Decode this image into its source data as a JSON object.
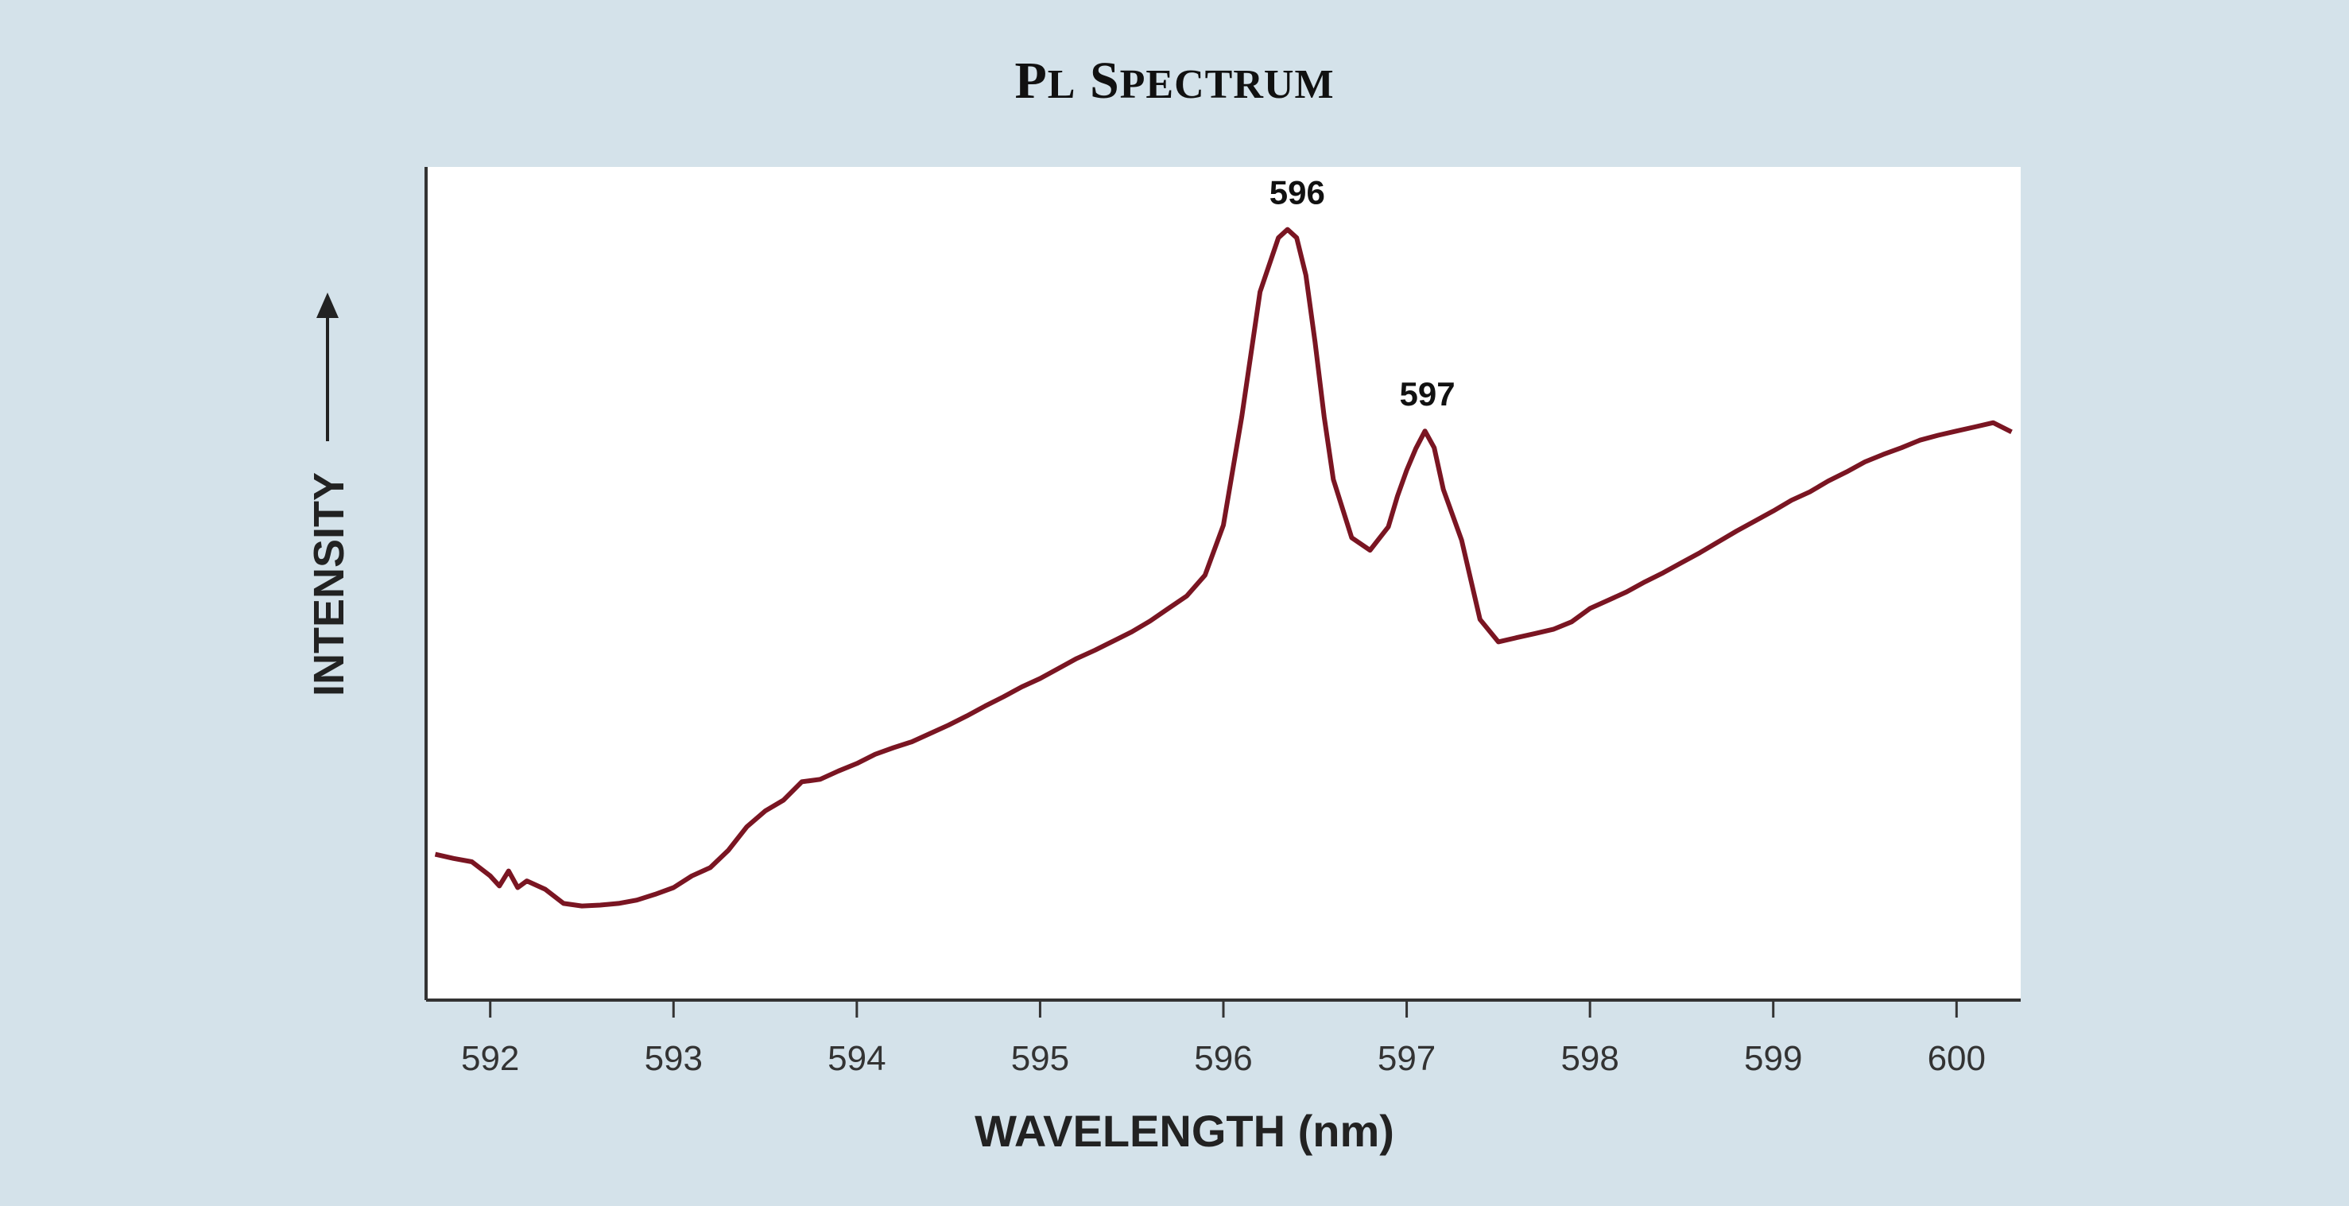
{
  "chart_data": {
    "type": "line",
    "title": "PL SPECTRUM",
    "xlabel": "WAVELENGTH (nm)",
    "ylabel": "INTENSITY",
    "xlim": [
      591.65,
      600.35
    ],
    "ylim": [
      0,
      100
    ],
    "x_ticks": [
      592,
      593,
      594,
      595,
      596,
      597,
      598,
      599,
      600
    ],
    "y_ticks_labeled": false,
    "grid": false,
    "legend": "none",
    "line_color": "#7a1522",
    "background_color": "#d4e2ea",
    "plot_background": "#ffffff",
    "annotations": [
      {
        "text": "596",
        "x": 596.42,
        "y": 92.5
      },
      {
        "text": "597",
        "x": 597.13,
        "y": 68.3
      }
    ],
    "series": [
      {
        "x": [
          591.7,
          591.8,
          591.9,
          592.0,
          592.05,
          592.1,
          592.15,
          592.2,
          592.3,
          592.4,
          592.5,
          592.6,
          592.7,
          592.8,
          592.9,
          593.0,
          593.1,
          593.2,
          593.3,
          593.4,
          593.5,
          593.6,
          593.7,
          593.8,
          593.9,
          594.0,
          594.1,
          594.2,
          594.3,
          594.4,
          594.5,
          594.6,
          594.7,
          594.8,
          594.9,
          595.0,
          595.1,
          595.2,
          595.3,
          595.4,
          595.5,
          595.6,
          595.7,
          595.8,
          595.9,
          596.0,
          596.1,
          596.2,
          596.3,
          596.35,
          596.4,
          596.45,
          596.5,
          596.55,
          596.6,
          596.7,
          596.8,
          596.9,
          596.95,
          597.0,
          597.05,
          597.1,
          597.15,
          597.2,
          597.3,
          597.4,
          597.5,
          597.6,
          597.7,
          597.8,
          597.9,
          598.0,
          598.1,
          598.2,
          598.3,
          598.4,
          598.5,
          598.6,
          598.7,
          598.8,
          598.9,
          599.0,
          599.1,
          599.2,
          599.3,
          599.4,
          599.5,
          599.6,
          599.7,
          599.8,
          599.9,
          600.0,
          600.1,
          600.2,
          600.3
        ],
        "values": [
          17.5,
          17.0,
          16.6,
          14.9,
          13.7,
          15.5,
          13.5,
          14.3,
          13.3,
          11.6,
          11.3,
          11.4,
          11.6,
          12.0,
          12.7,
          13.5,
          14.9,
          15.9,
          18.0,
          20.8,
          22.7,
          24.0,
          26.2,
          26.5,
          27.5,
          28.4,
          29.5,
          30.3,
          31.0,
          32.0,
          33.0,
          34.1,
          35.3,
          36.4,
          37.6,
          38.6,
          39.8,
          41.0,
          42.0,
          43.1,
          44.2,
          45.5,
          47.0,
          48.5,
          51.0,
          57.0,
          70.0,
          85.0,
          91.5,
          92.5,
          91.5,
          87.0,
          79.0,
          70.0,
          62.5,
          55.5,
          54.0,
          56.8,
          60.5,
          63.6,
          66.2,
          68.3,
          66.3,
          61.3,
          55.2,
          45.7,
          43.0,
          43.5,
          44.0,
          44.5,
          45.4,
          47.0,
          48.0,
          49.0,
          50.2,
          51.3,
          52.5,
          53.7,
          55.0,
          56.3,
          57.5,
          58.7,
          60.0,
          61.0,
          62.3,
          63.4,
          64.6,
          65.5,
          66.3,
          67.2,
          67.8,
          68.3,
          68.8,
          69.3,
          68.2
        ]
      }
    ]
  }
}
